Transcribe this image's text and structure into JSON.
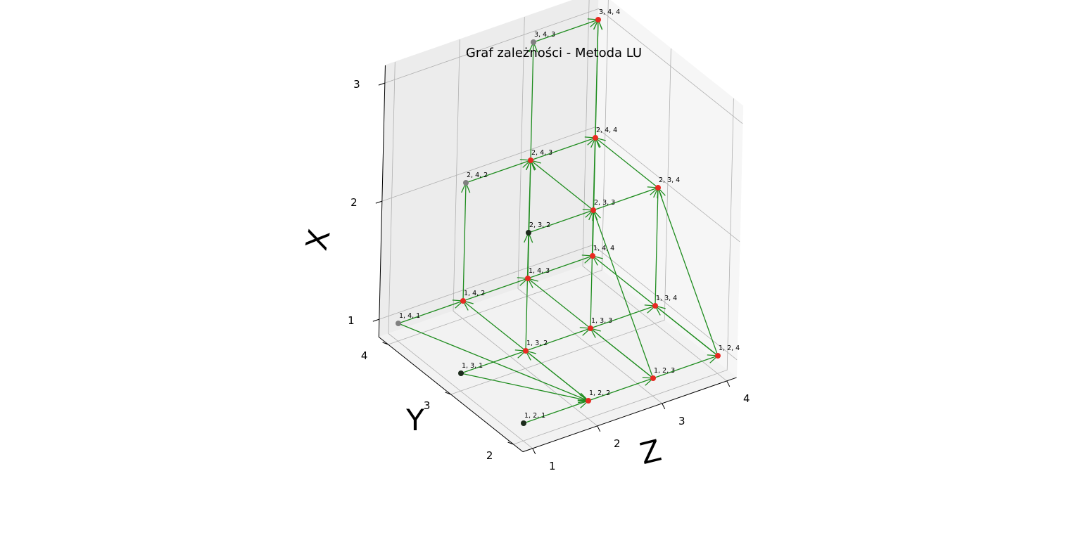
{
  "chart_data": {
    "type": "scatter",
    "projection": "3d",
    "title": "Graf zależności - Metoda LU",
    "xlabel": "Z",
    "ylabel": "Y",
    "zlabel": "X",
    "ticks": {
      "Z": [
        "1",
        "2",
        "3",
        "4"
      ],
      "Y": [
        "2",
        "3",
        "4"
      ],
      "X": [
        "1",
        "2",
        "3"
      ]
    },
    "grid": true,
    "colors": {
      "edge": "#1e8c1e",
      "computed_node": "#e82a22",
      "input_node": "#1c2b1c",
      "faded_node": "#808080",
      "pane": "#f2f2f2"
    },
    "points": [
      {
        "label": "1, 2, 1",
        "x": 1,
        "y": 2,
        "z": 1,
        "color": "#1c2b1c"
      },
      {
        "label": "1, 3, 1",
        "x": 1,
        "y": 3,
        "z": 1,
        "color": "#1c2b1c"
      },
      {
        "label": "1, 4, 1",
        "x": 1,
        "y": 4,
        "z": 1,
        "color": "#808080"
      },
      {
        "label": "1, 2, 2",
        "x": 1,
        "y": 2,
        "z": 2,
        "color": "#e82a22"
      },
      {
        "label": "1, 3, 2",
        "x": 1,
        "y": 3,
        "z": 2,
        "color": "#e82a22"
      },
      {
        "label": "1, 4, 2",
        "x": 1,
        "y": 4,
        "z": 2,
        "color": "#e82a22"
      },
      {
        "label": "1, 2, 3",
        "x": 1,
        "y": 2,
        "z": 3,
        "color": "#e82a22"
      },
      {
        "label": "1, 3, 3",
        "x": 1,
        "y": 3,
        "z": 3,
        "color": "#e82a22"
      },
      {
        "label": "1, 4, 3",
        "x": 1,
        "y": 4,
        "z": 3,
        "color": "#e82a22"
      },
      {
        "label": "1, 2, 4",
        "x": 1,
        "y": 2,
        "z": 4,
        "color": "#e82a22"
      },
      {
        "label": "1, 3, 4",
        "x": 1,
        "y": 3,
        "z": 4,
        "color": "#e82a22"
      },
      {
        "label": "1, 4, 4",
        "x": 1,
        "y": 4,
        "z": 4,
        "color": "#e82a22"
      },
      {
        "label": "2, 3, 2",
        "x": 2,
        "y": 3,
        "z": 2,
        "color": "#1c2b1c"
      },
      {
        "label": "2, 4, 2",
        "x": 2,
        "y": 4,
        "z": 2,
        "color": "#808080"
      },
      {
        "label": "2, 3, 3",
        "x": 2,
        "y": 3,
        "z": 3,
        "color": "#e82a22"
      },
      {
        "label": "2, 4, 3",
        "x": 2,
        "y": 4,
        "z": 3,
        "color": "#e82a22"
      },
      {
        "label": "2, 3, 4",
        "x": 2,
        "y": 3,
        "z": 4,
        "color": "#e82a22"
      },
      {
        "label": "2, 4, 4",
        "x": 2,
        "y": 4,
        "z": 4,
        "color": "#e82a22"
      },
      {
        "label": "3, 4, 3",
        "x": 3,
        "y": 4,
        "z": 3,
        "color": "#808080"
      },
      {
        "label": "3, 4, 4",
        "x": 3,
        "y": 4,
        "z": 4,
        "color": "#e82a22"
      }
    ],
    "edges": [
      [
        "1, 2, 1",
        "1, 2, 2"
      ],
      [
        "1, 3, 1",
        "1, 3, 2"
      ],
      [
        "1, 4, 1",
        "1, 4, 2"
      ],
      [
        "1, 2, 2",
        "1, 2, 3"
      ],
      [
        "1, 3, 2",
        "1, 3, 3"
      ],
      [
        "1, 4, 2",
        "1, 4, 3"
      ],
      [
        "1, 2, 3",
        "1, 2, 4"
      ],
      [
        "1, 3, 3",
        "1, 3, 4"
      ],
      [
        "1, 4, 3",
        "1, 4, 4"
      ],
      [
        "1, 2, 2",
        "1, 3, 2"
      ],
      [
        "1, 2, 2",
        "1, 4, 2"
      ],
      [
        "1, 2, 3",
        "1, 3, 3"
      ],
      [
        "1, 2, 3",
        "1, 4, 3"
      ],
      [
        "1, 2, 4",
        "1, 3, 4"
      ],
      [
        "1, 2, 4",
        "1, 4, 4"
      ],
      [
        "1, 3, 1",
        "1, 2, 2"
      ],
      [
        "1, 4, 1",
        "1, 2, 2"
      ],
      [
        "1, 3, 2",
        "2, 3, 2"
      ],
      [
        "1, 4, 2",
        "2, 4, 2"
      ],
      [
        "1, 3, 3",
        "2, 3, 3"
      ],
      [
        "1, 4, 3",
        "2, 4, 3"
      ],
      [
        "1, 3, 4",
        "2, 3, 4"
      ],
      [
        "1, 4, 4",
        "2, 4, 4"
      ],
      [
        "2, 3, 2",
        "2, 3, 3"
      ],
      [
        "2, 4, 2",
        "2, 4, 3"
      ],
      [
        "2, 3, 3",
        "2, 3, 4"
      ],
      [
        "2, 4, 3",
        "2, 4, 4"
      ],
      [
        "2, 3, 3",
        "2, 4, 3"
      ],
      [
        "2, 3, 4",
        "2, 4, 4"
      ],
      [
        "2, 3, 2",
        "2, 4, 3"
      ],
      [
        "2, 4, 3",
        "3, 4, 3"
      ],
      [
        "2, 4, 4",
        "3, 4, 4"
      ],
      [
        "3, 4, 3",
        "3, 4, 4"
      ],
      [
        "2, 3, 3",
        "3, 4, 4"
      ],
      [
        "1, 2, 3",
        "2, 3, 3"
      ],
      [
        "1, 2, 4",
        "2, 3, 4"
      ]
    ]
  }
}
